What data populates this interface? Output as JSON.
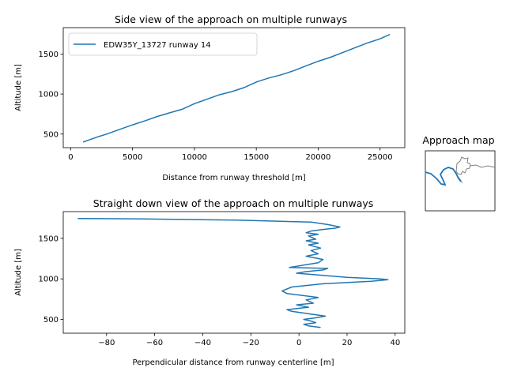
{
  "chart_data": [
    {
      "type": "line",
      "title": "Side view of the approach on multiple runways",
      "xlabel": "Distance from runway threshold [m]",
      "ylabel": "Altitude [m]",
      "xlim": [
        -600,
        27000
      ],
      "ylim": [
        330,
        1830
      ],
      "xticks": [
        0,
        5000,
        10000,
        15000,
        20000,
        25000
      ],
      "xtick_labels": [
        "0",
        "5000",
        "10000",
        "15000",
        "20000",
        "25000"
      ],
      "yticks": [
        500,
        1000,
        1500
      ],
      "ytick_labels": [
        "500",
        "1000",
        "1500"
      ],
      "grid": false,
      "legend": "upper-left",
      "colors": {
        "series": "#1f77b4"
      },
      "series": [
        {
          "name": "EDW35Y_13727 runway 14",
          "x": [
            1000,
            2000,
            3000,
            4000,
            5000,
            6000,
            7000,
            8000,
            9000,
            10000,
            11000,
            12000,
            13000,
            14000,
            15000,
            16000,
            17000,
            18000,
            19000,
            20000,
            21000,
            22000,
            23000,
            24000,
            25000,
            25800
          ],
          "y": [
            400,
            455,
            505,
            560,
            615,
            665,
            720,
            765,
            810,
            880,
            935,
            990,
            1030,
            1080,
            1150,
            1200,
            1240,
            1290,
            1350,
            1410,
            1460,
            1520,
            1580,
            1640,
            1690,
            1745
          ]
        }
      ]
    },
    {
      "type": "line",
      "title": "Straight down view of the approach on multiple runways",
      "xlabel": "Perpendicular distance from runway centerline [m]",
      "ylabel": "Altitude [m]",
      "xlim": [
        -98,
        44
      ],
      "ylim": [
        330,
        1830
      ],
      "xticks": [
        -80,
        -60,
        -40,
        -20,
        0,
        20,
        40
      ],
      "xtick_labels": [
        "−80",
        "−60",
        "−40",
        "−20",
        "0",
        "20",
        "40"
      ],
      "yticks": [
        500,
        1000,
        1500
      ],
      "ytick_labels": [
        "500",
        "1000",
        "1500"
      ],
      "grid": false,
      "colors": {
        "series": "#1f77b4"
      },
      "series": [
        {
          "name": "",
          "x": [
            -92,
            -65,
            -26,
            5,
            12,
            17,
            15,
            10,
            5,
            3,
            8,
            4,
            7,
            3,
            8,
            4,
            9,
            5,
            8,
            3,
            10,
            8,
            -4,
            12,
            10,
            3,
            -1,
            20,
            34,
            37,
            30,
            10,
            -3,
            -7,
            -5,
            8,
            3,
            6,
            -1,
            4,
            -5,
            -3,
            4,
            11,
            7,
            2,
            5,
            7,
            2,
            4,
            9
          ],
          "y": [
            1745,
            1740,
            1725,
            1700,
            1670,
            1640,
            1625,
            1610,
            1590,
            1570,
            1550,
            1530,
            1490,
            1470,
            1440,
            1420,
            1380,
            1350,
            1310,
            1280,
            1240,
            1200,
            1140,
            1130,
            1110,
            1090,
            1070,
            1020,
            1000,
            990,
            970,
            940,
            900,
            850,
            820,
            770,
            740,
            700,
            680,
            650,
            620,
            600,
            570,
            540,
            520,
            500,
            480,
            460,
            440,
            420,
            400
          ]
        }
      ]
    }
  ],
  "approach_map": {
    "title": "Approach map",
    "colors": {
      "track": "#1f77b4",
      "coast": "#808080"
    }
  }
}
